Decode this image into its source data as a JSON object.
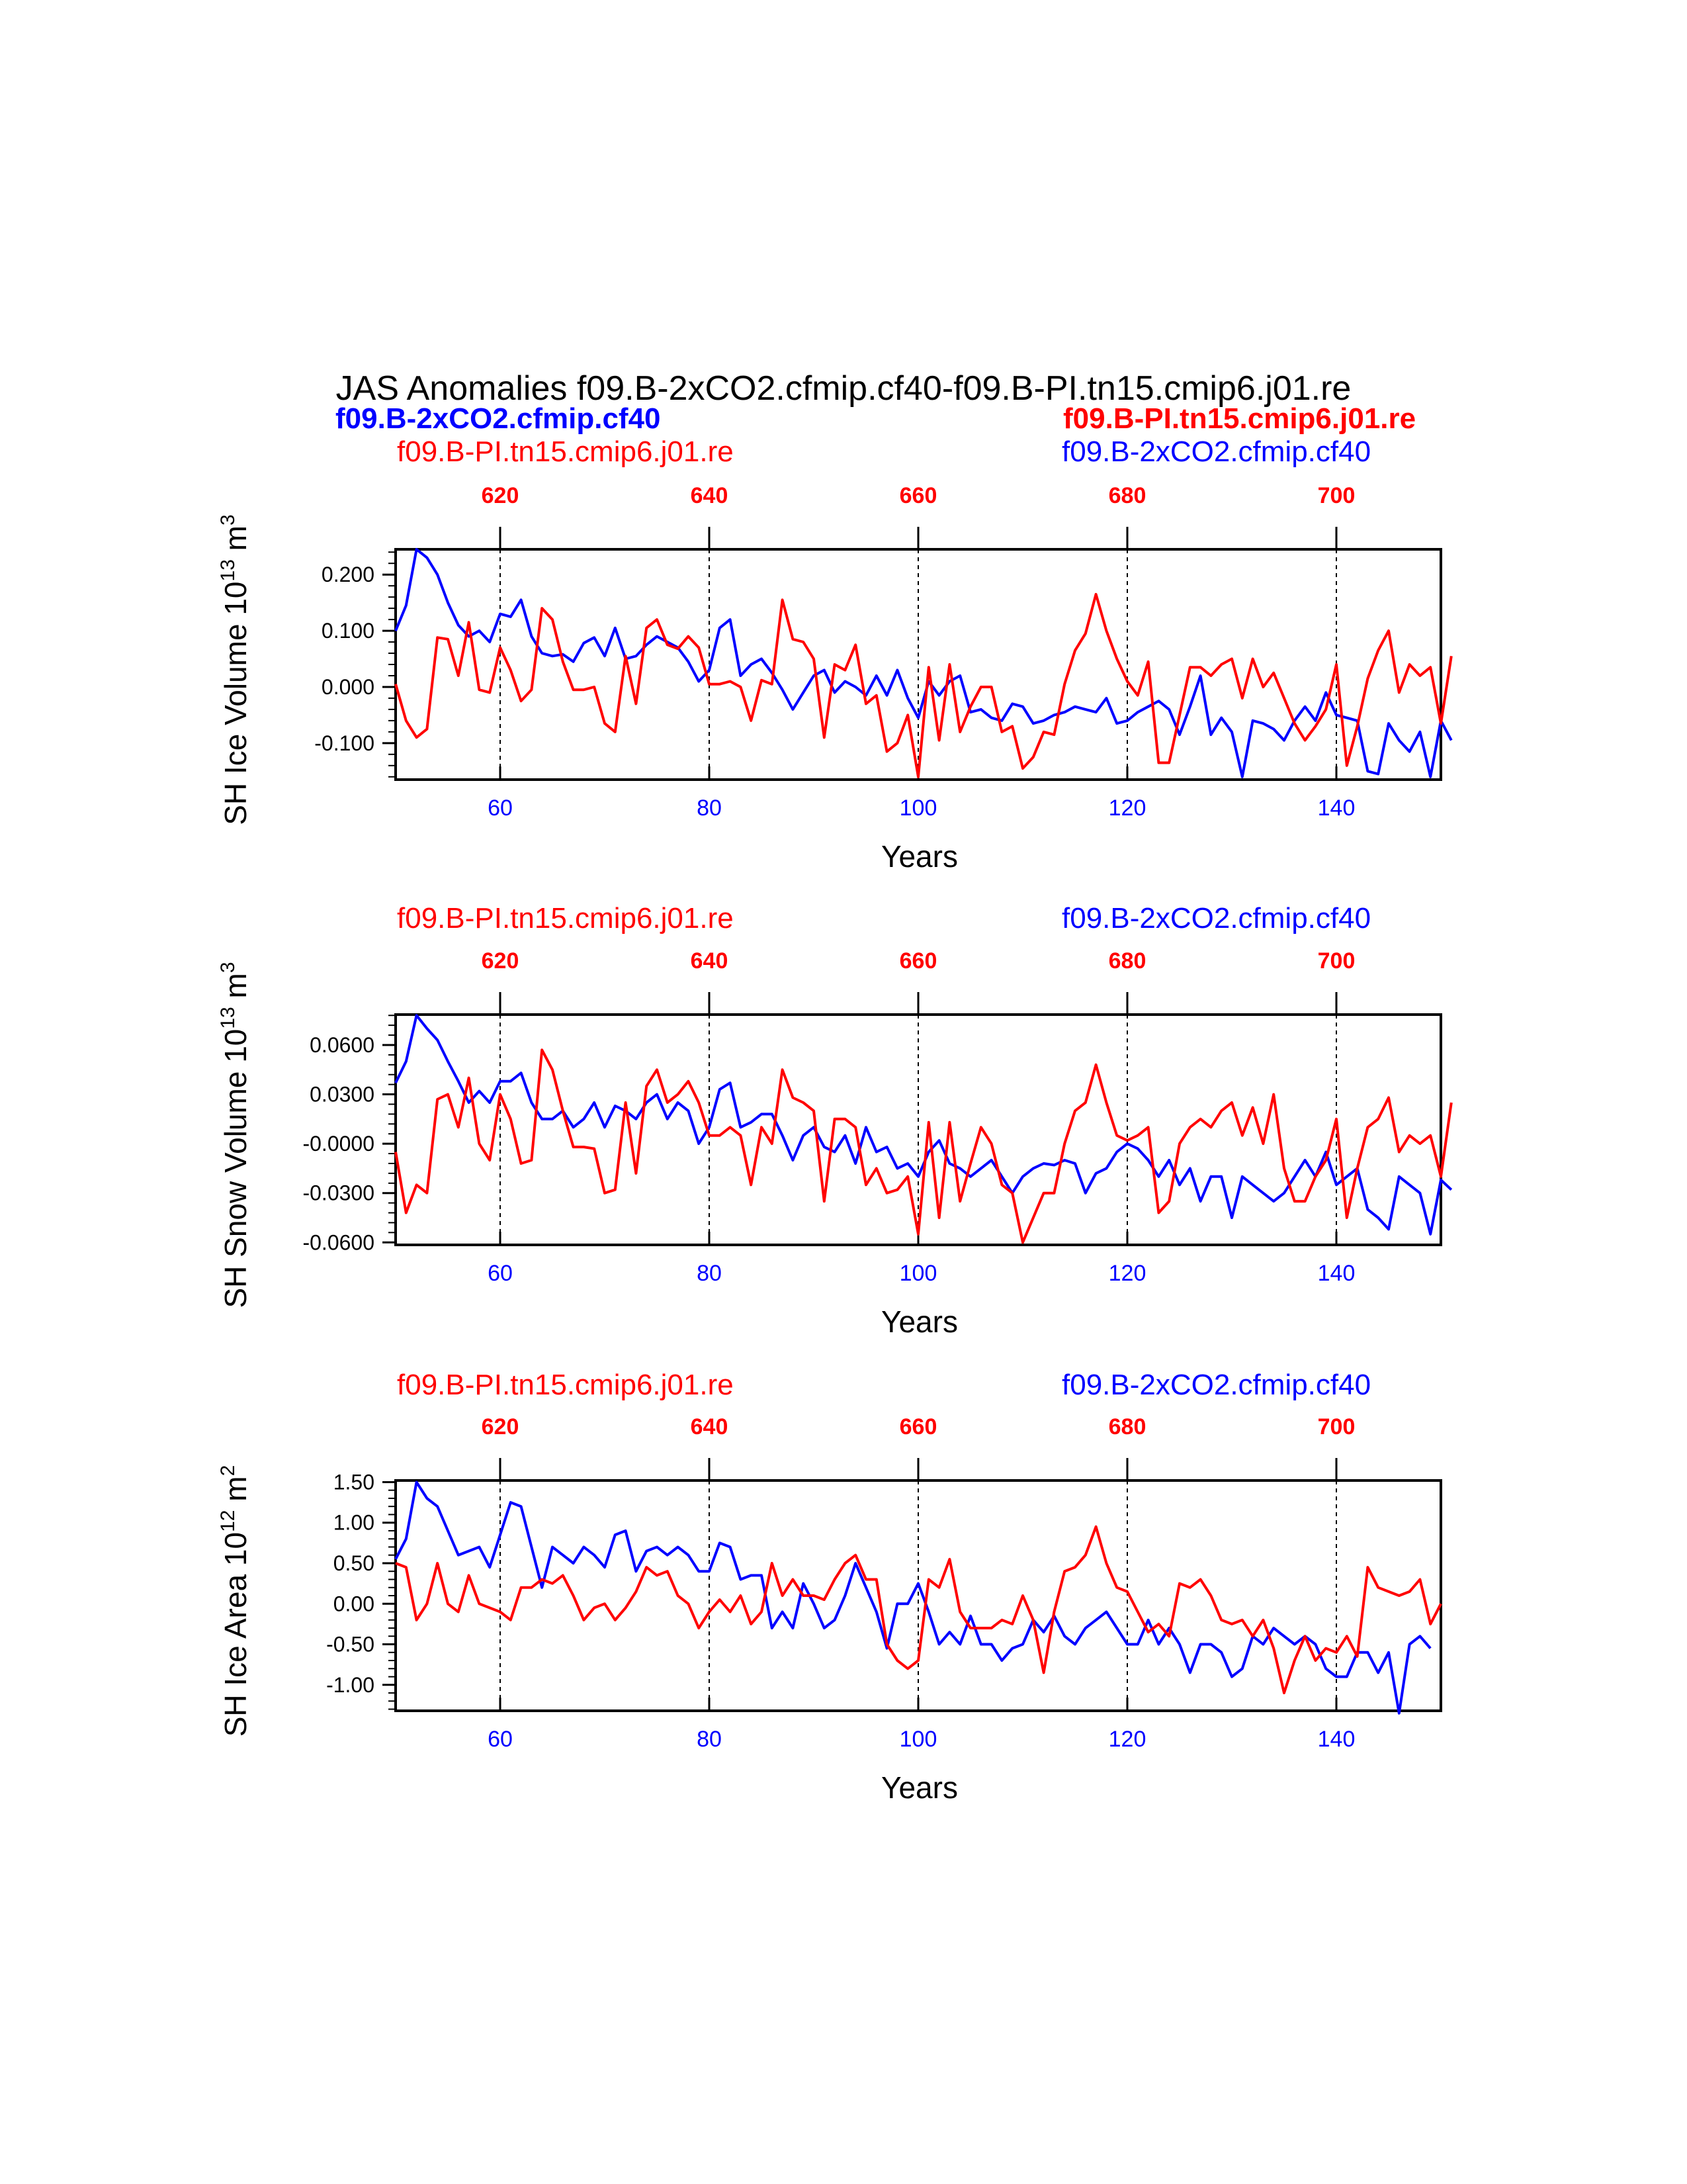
{
  "title": "JAS Anomalies f09.B-2xCO2.cfmip.cf40-f09.B-PI.tn15.cmip6.j01.re",
  "colors": {
    "case1": "#0000ff",
    "case2": "#ff0000",
    "axis": "#000000"
  },
  "labels": {
    "left_bold": "f09.B-2xCO2.cfmip.cf40",
    "right_bold": "f09.B-PI.tn15.cmip6.j01.re",
    "left_plain": "f09.B-PI.tn15.cmip6.j01.re",
    "right_plain": "f09.B-2xCO2.cfmip.cf40"
  },
  "chart_data": [
    {
      "type": "line",
      "ylabel": "SH Ice Volume 10",
      "yunit_exp": "13",
      "yunit_tail": " m",
      "yunit_sup2": "3",
      "xlabel": "Years",
      "xlim": [
        50,
        150
      ],
      "ylim": [
        -0.165,
        0.245
      ],
      "yticks": [
        -0.1,
        0.0,
        0.1,
        0.2
      ],
      "yticklabels": [
        "-0.100",
        "0.000",
        "0.100",
        "0.200"
      ],
      "xticks_bottom": [
        60,
        80,
        100,
        120,
        140
      ],
      "xticks_bottom_labels": [
        "60",
        "80",
        "100",
        "120",
        "140"
      ],
      "xticks_top_labels": [
        "620",
        "640",
        "660",
        "680",
        "700"
      ],
      "x_start": 50,
      "series": [
        {
          "name": "f09.B-2xCO2.cfmip.cf40",
          "color": "#0000ff",
          "values": [
            0.1,
            0.145,
            0.245,
            0.23,
            0.2,
            0.15,
            0.11,
            0.09,
            0.1,
            0.08,
            0.13,
            0.125,
            0.155,
            0.09,
            0.06,
            0.055,
            0.058,
            0.045,
            0.078,
            0.088,
            0.055,
            0.105,
            0.05,
            0.055,
            0.075,
            0.09,
            0.08,
            0.07,
            0.045,
            0.01,
            0.03,
            0.105,
            0.12,
            0.02,
            0.04,
            0.05,
            0.025,
            -0.005,
            -0.04,
            -0.01,
            0.02,
            0.03,
            -0.01,
            0.01,
            0.0,
            -0.015,
            0.02,
            -0.015,
            0.03,
            -0.02,
            -0.055,
            0.01,
            -0.015,
            0.01,
            0.02,
            -0.045,
            -0.04,
            -0.055,
            -0.06,
            -0.03,
            -0.035,
            -0.065,
            -0.06,
            -0.05,
            -0.045,
            -0.035,
            -0.04,
            -0.045,
            -0.02,
            -0.065,
            -0.06,
            -0.045,
            -0.035,
            -0.025,
            -0.04,
            -0.085,
            -0.035,
            0.02,
            -0.085,
            -0.055,
            -0.08,
            -0.16,
            -0.06,
            -0.065,
            -0.075,
            -0.095,
            -0.06,
            -0.035,
            -0.06,
            -0.01,
            -0.05,
            -0.055,
            -0.06,
            -0.15,
            -0.155,
            -0.065,
            -0.095,
            -0.115,
            -0.08,
            -0.16,
            -0.06,
            -0.095
          ]
        },
        {
          "name": "f09.B-PI.tn15.cmip6.j01.re",
          "color": "#ff0000",
          "values": [
            0.005,
            -0.06,
            -0.09,
            -0.075,
            0.088,
            0.085,
            0.02,
            0.115,
            -0.005,
            -0.01,
            0.07,
            0.03,
            -0.025,
            -0.005,
            0.14,
            0.12,
            0.045,
            -0.005,
            -0.005,
            0.0,
            -0.065,
            -0.08,
            0.055,
            -0.03,
            0.105,
            0.12,
            0.075,
            0.068,
            0.09,
            0.07,
            0.005,
            0.005,
            0.01,
            0.0,
            -0.06,
            0.012,
            0.005,
            0.155,
            0.085,
            0.08,
            0.05,
            -0.09,
            0.04,
            0.03,
            0.075,
            -0.03,
            -0.015,
            -0.115,
            -0.1,
            -0.05,
            -0.16,
            0.035,
            -0.095,
            0.04,
            -0.08,
            -0.035,
            0.0,
            0.0,
            -0.08,
            -0.07,
            -0.145,
            -0.125,
            -0.08,
            -0.085,
            0.005,
            0.065,
            0.095,
            0.165,
            0.1,
            0.05,
            0.01,
            -0.015,
            0.045,
            -0.135,
            -0.135,
            -0.05,
            0.035,
            0.035,
            0.02,
            0.04,
            0.05,
            -0.02,
            0.05,
            0.0,
            0.025,
            -0.02,
            -0.065,
            -0.095,
            -0.07,
            -0.04,
            0.04,
            -0.14,
            -0.07,
            0.015,
            0.065,
            0.1,
            -0.01,
            0.04,
            0.02,
            0.035,
            -0.065,
            0.055
          ]
        }
      ]
    },
    {
      "type": "line",
      "ylabel": "SH Snow Volume 10",
      "yunit_exp": "13",
      "yunit_tail": " m",
      "yunit_sup2": "3",
      "xlabel": "Years",
      "xlim": [
        50,
        150
      ],
      "ylim": [
        -0.0615,
        0.0785
      ],
      "yticks": [
        -0.06,
        -0.03,
        0.0,
        0.03,
        0.06
      ],
      "yticklabels": [
        "-0.0600",
        "-0.0300",
        "-0.0000",
        "0.0300",
        "0.0600"
      ],
      "xticks_bottom": [
        60,
        80,
        100,
        120,
        140
      ],
      "xticks_bottom_labels": [
        "60",
        "80",
        "100",
        "120",
        "140"
      ],
      "xticks_top_labels": [
        "620",
        "640",
        "660",
        "680",
        "700"
      ],
      "series_labels": {
        "left": "f09.B-PI.tn15.cmip6.j01.re",
        "right": "f09.B-2xCO2.cfmip.cf40"
      },
      "x_start": 50,
      "series": [
        {
          "name": "f09.B-2xCO2.cfmip.cf40",
          "color": "#0000ff",
          "values": [
            0.037,
            0.05,
            0.078,
            0.07,
            0.063,
            0.05,
            0.038,
            0.025,
            0.032,
            0.025,
            0.038,
            0.038,
            0.043,
            0.025,
            0.015,
            0.015,
            0.02,
            0.01,
            0.015,
            0.025,
            0.01,
            0.023,
            0.02,
            0.015,
            0.025,
            0.03,
            0.015,
            0.025,
            0.02,
            0.0,
            0.01,
            0.033,
            0.037,
            0.01,
            0.013,
            0.018,
            0.018,
            0.005,
            -0.01,
            0.005,
            0.01,
            -0.002,
            -0.005,
            0.005,
            -0.012,
            0.01,
            -0.005,
            -0.002,
            -0.015,
            -0.012,
            -0.02,
            -0.005,
            0.002,
            -0.012,
            -0.015,
            -0.02,
            -0.015,
            -0.01,
            -0.02,
            -0.03,
            -0.02,
            -0.015,
            -0.012,
            -0.013,
            -0.01,
            -0.012,
            -0.03,
            -0.018,
            -0.015,
            -0.005,
            0.0,
            -0.003,
            -0.01,
            -0.02,
            -0.01,
            -0.025,
            -0.015,
            -0.035,
            -0.02,
            -0.02,
            -0.045,
            -0.02,
            -0.025,
            -0.03,
            -0.035,
            -0.03,
            -0.02,
            -0.01,
            -0.02,
            -0.005,
            -0.025,
            -0.02,
            -0.015,
            -0.04,
            -0.045,
            -0.052,
            -0.02,
            -0.025,
            -0.03,
            -0.055,
            -0.022,
            -0.028
          ]
        },
        {
          "name": "f09.B-PI.tn15.cmip6.j01.re",
          "color": "#ff0000",
          "values": [
            -0.005,
            -0.042,
            -0.025,
            -0.03,
            0.027,
            0.03,
            0.01,
            0.04,
            0.0,
            -0.01,
            0.03,
            0.015,
            -0.012,
            -0.01,
            0.057,
            0.045,
            0.02,
            -0.002,
            -0.002,
            -0.003,
            -0.03,
            -0.028,
            0.025,
            -0.018,
            0.035,
            0.045,
            0.025,
            0.03,
            0.038,
            0.025,
            0.005,
            0.005,
            0.01,
            0.005,
            -0.025,
            0.01,
            0.0,
            0.045,
            0.028,
            0.025,
            0.02,
            -0.035,
            0.015,
            0.015,
            0.01,
            -0.025,
            -0.015,
            -0.03,
            -0.028,
            -0.02,
            -0.055,
            0.013,
            -0.045,
            0.013,
            -0.035,
            -0.012,
            0.01,
            0.0,
            -0.025,
            -0.03,
            -0.06,
            -0.045,
            -0.03,
            -0.03,
            0.0,
            0.02,
            0.025,
            0.048,
            0.025,
            0.005,
            0.002,
            0.005,
            0.01,
            -0.042,
            -0.035,
            0.0,
            0.01,
            0.015,
            0.01,
            0.02,
            0.025,
            0.005,
            0.022,
            0.0,
            0.03,
            -0.015,
            -0.035,
            -0.035,
            -0.02,
            -0.01,
            0.015,
            -0.045,
            -0.015,
            0.01,
            0.015,
            0.028,
            -0.005,
            0.005,
            0.0,
            0.005,
            -0.02,
            0.025
          ]
        }
      ]
    },
    {
      "type": "line",
      "ylabel": "SH Ice Area 10",
      "yunit_exp": "12",
      "yunit_tail": " m",
      "yunit_sup2": "2",
      "xlabel": "Years",
      "xlim": [
        50,
        150
      ],
      "ylim": [
        -1.32,
        1.52
      ],
      "yticks": [
        -1.0,
        -0.5,
        0.0,
        0.5,
        1.0,
        1.5
      ],
      "yticklabels": [
        "-1.00",
        "-0.50",
        "0.00",
        "0.50",
        "1.00",
        "1.50"
      ],
      "xticks_bottom": [
        60,
        80,
        100,
        120,
        140
      ],
      "xticks_bottom_labels": [
        "60",
        "80",
        "100",
        "120",
        "140"
      ],
      "xticks_top_labels": [
        "620",
        "640",
        "660",
        "680",
        "700"
      ],
      "series_labels": {
        "left": "f09.B-PI.tn15.cmip6.j01.re",
        "right": "f09.B-2xCO2.cfmip.cf40"
      },
      "x_start": 50,
      "series": [
        {
          "name": "f09.B-2xCO2.cfmip.cf40",
          "color": "#0000ff",
          "values": [
            0.55,
            0.8,
            1.5,
            1.3,
            1.2,
            0.9,
            0.6,
            0.65,
            0.7,
            0.45,
            0.85,
            1.25,
            1.2,
            0.7,
            0.2,
            0.7,
            0.6,
            0.5,
            0.7,
            0.6,
            0.45,
            0.85,
            0.9,
            0.4,
            0.65,
            0.7,
            0.6,
            0.7,
            0.6,
            0.4,
            0.4,
            0.75,
            0.7,
            0.3,
            0.35,
            0.35,
            -0.3,
            -0.1,
            -0.3,
            0.25,
            0.0,
            -0.3,
            -0.2,
            0.1,
            0.5,
            0.2,
            -0.1,
            -0.55,
            0.0,
            0.0,
            0.25,
            -0.1,
            -0.5,
            -0.35,
            -0.5,
            -0.15,
            -0.5,
            -0.5,
            -0.7,
            -0.55,
            -0.5,
            -0.2,
            -0.35,
            -0.15,
            -0.4,
            -0.5,
            -0.3,
            -0.2,
            -0.1,
            -0.3,
            -0.5,
            -0.5,
            -0.2,
            -0.5,
            -0.3,
            -0.5,
            -0.85,
            -0.5,
            -0.5,
            -0.6,
            -0.9,
            -0.8,
            -0.4,
            -0.5,
            -0.3,
            -0.4,
            -0.5,
            -0.4,
            -0.5,
            -0.8,
            -0.9,
            -0.9,
            -0.6,
            -0.6,
            -0.85,
            -0.6,
            -1.35,
            -0.5,
            -0.4,
            -0.55
          ]
        },
        {
          "name": "f09.B-PI.tn15.cmip6.j01.re",
          "color": "#ff0000",
          "values": [
            0.5,
            0.45,
            -0.2,
            0.0,
            0.5,
            0.0,
            -0.1,
            0.35,
            0.0,
            -0.05,
            -0.1,
            -0.2,
            0.2,
            0.2,
            0.3,
            0.25,
            0.35,
            0.1,
            -0.2,
            -0.05,
            0.0,
            -0.2,
            -0.05,
            0.15,
            0.45,
            0.35,
            0.4,
            0.1,
            0.0,
            -0.3,
            -0.1,
            0.05,
            -0.1,
            0.1,
            -0.25,
            -0.1,
            0.5,
            0.1,
            0.3,
            0.1,
            0.1,
            0.05,
            0.3,
            0.5,
            0.6,
            0.3,
            0.3,
            -0.5,
            -0.7,
            -0.8,
            -0.7,
            0.3,
            0.2,
            0.55,
            -0.1,
            -0.3,
            -0.3,
            -0.3,
            -0.2,
            -0.25,
            0.1,
            -0.2,
            -0.85,
            -0.1,
            0.4,
            0.45,
            0.6,
            0.95,
            0.5,
            0.2,
            0.15,
            -0.1,
            -0.35,
            -0.25,
            -0.4,
            0.25,
            0.2,
            0.3,
            0.1,
            -0.2,
            -0.25,
            -0.2,
            -0.4,
            -0.2,
            -0.55,
            -1.1,
            -0.7,
            -0.4,
            -0.7,
            -0.55,
            -0.6,
            -0.4,
            -0.65,
            0.45,
            0.2,
            0.15,
            0.1,
            0.15,
            0.3,
            -0.25,
            0.0
          ]
        }
      ]
    }
  ]
}
